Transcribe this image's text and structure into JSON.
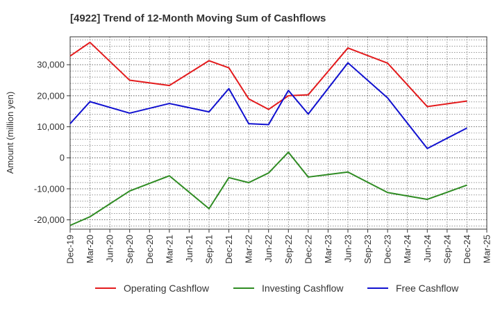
{
  "chart_data": {
    "type": "line",
    "title": "[4922]  Trend of 12-Month Moving Sum of Cashflows",
    "ylabel": "Amount (million yen)",
    "xlabel": "",
    "ylim": [
      -23000,
      39000
    ],
    "yticks": [
      -20000,
      -10000,
      0,
      10000,
      20000,
      30000
    ],
    "ytick_labels": [
      "-20,000",
      "-10,000",
      "0",
      "10,000",
      "20,000",
      "30,000"
    ],
    "categories": [
      "Dec-19",
      "Mar-20",
      "Jun-20",
      "Sep-20",
      "Dec-20",
      "Mar-21",
      "Jun-21",
      "Sep-21",
      "Dec-21",
      "Mar-22",
      "Jun-22",
      "Sep-22",
      "Dec-22",
      "Mar-23",
      "Jun-23",
      "Sep-23",
      "Dec-23",
      "Mar-24",
      "Jun-24",
      "Sep-24",
      "Dec-24",
      "Mar-25"
    ],
    "grid": true,
    "legend_position": "bottom",
    "series": [
      {
        "name": "Operating Cashflow",
        "color": "#e31a1c",
        "values": [
          32800,
          37200,
          null,
          25000,
          null,
          23300,
          null,
          31300,
          29000,
          19000,
          15600,
          20000,
          20300,
          null,
          35400,
          null,
          30500,
          null,
          16500,
          null,
          18300,
          null
        ]
      },
      {
        "name": "Investing Cashflow",
        "color": "#2e8b22",
        "values": [
          -21800,
          -19000,
          null,
          -10700,
          null,
          -5800,
          null,
          -16400,
          -6400,
          -8000,
          -4900,
          1800,
          -6200,
          null,
          -4600,
          null,
          -11200,
          null,
          -13400,
          null,
          -8800,
          null
        ]
      },
      {
        "name": "Free Cashflow",
        "color": "#1010d0",
        "values": [
          11000,
          18100,
          null,
          14400,
          null,
          17500,
          null,
          14800,
          22300,
          11000,
          10700,
          21700,
          14100,
          null,
          30600,
          null,
          19300,
          null,
          3000,
          null,
          9600,
          null
        ]
      }
    ]
  }
}
